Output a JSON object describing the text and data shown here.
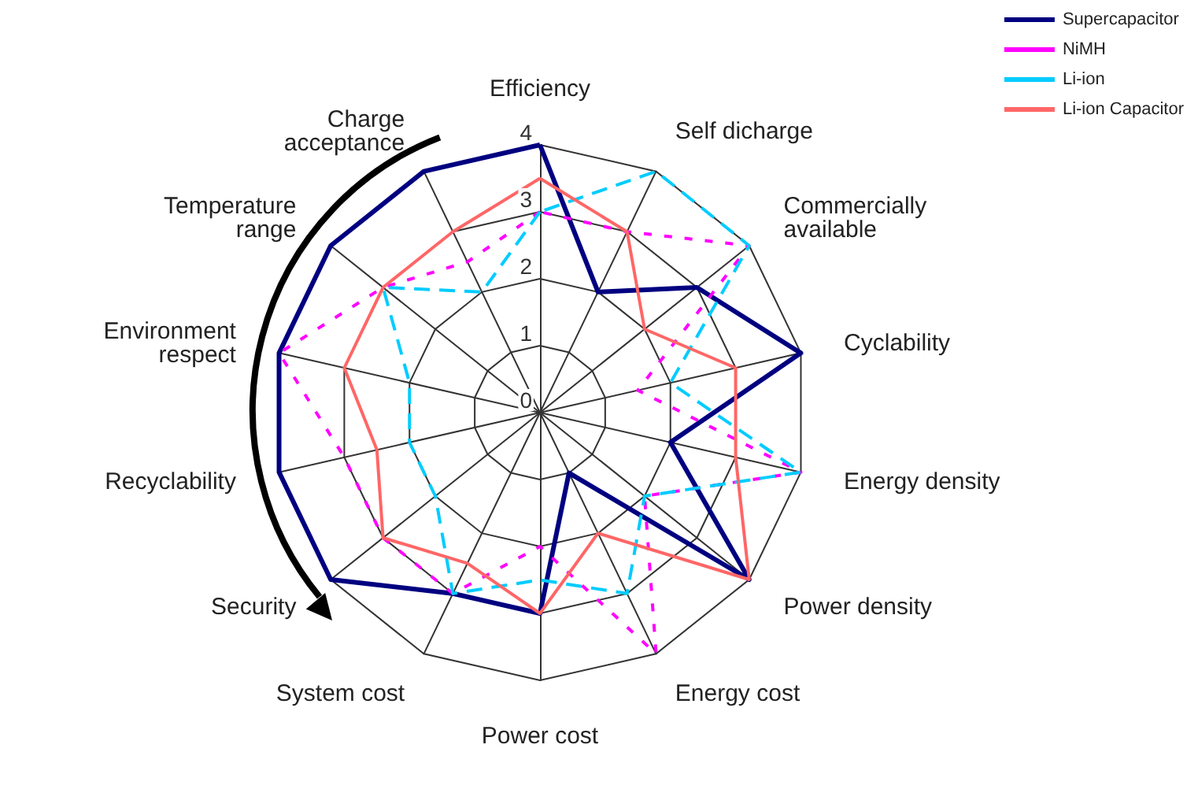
{
  "chart_data": {
    "type": "radar",
    "categories": [
      "Efficiency",
      "Self dicharge",
      "Commercially\navailable",
      "Cyclability",
      "Energy density",
      "Power density",
      "Energy cost",
      "Power cost",
      "System cost",
      "Security",
      "Recyclability",
      "Environment\nrespect",
      "Temperature\nrange",
      "Charge\nacceptance"
    ],
    "series": [
      {
        "name": "Supercapacitor",
        "color": "#000080",
        "line_style": "solid",
        "values": [
          4,
          2,
          3,
          4,
          2,
          4,
          1,
          3,
          3,
          4,
          4,
          4,
          4,
          4
        ]
      },
      {
        "name": "NiMH",
        "color": "#ff00ff",
        "line_style": "dotted",
        "values": [
          3,
          3,
          4,
          1.5,
          4,
          2,
          4,
          2,
          3,
          3,
          3,
          4,
          3,
          2.5
        ]
      },
      {
        "name": "Li-ion",
        "color": "#00ccff",
        "line_style": "dashed",
        "values": [
          3,
          4,
          4,
          2,
          4,
          2,
          3,
          2.5,
          3,
          2,
          2,
          2,
          3,
          2
        ]
      },
      {
        "name": "Li-ion Capacitor",
        "color": "#ff6666",
        "line_style": "solid",
        "values": [
          3.5,
          3,
          2,
          3,
          3,
          4,
          2,
          3,
          2.5,
          3,
          2.5,
          3,
          3,
          3
        ]
      }
    ],
    "ylim": [
      0,
      4
    ],
    "yticks": [
      0,
      1,
      2,
      3,
      4
    ],
    "legend": "top right",
    "grid": true,
    "marker": "none"
  }
}
